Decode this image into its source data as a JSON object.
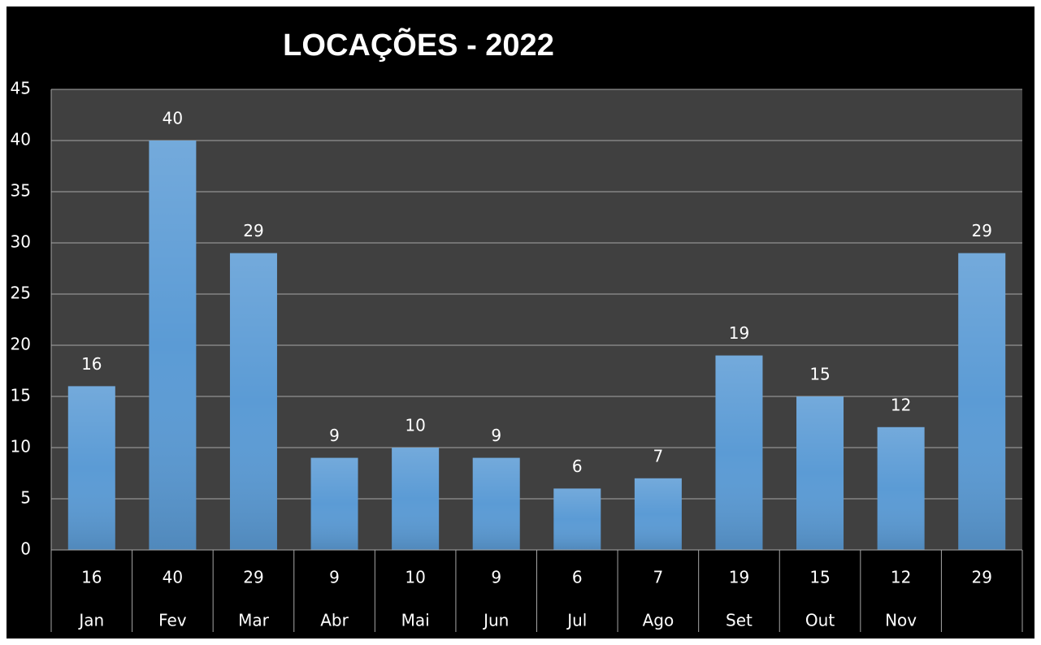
{
  "chart_data": {
    "type": "bar",
    "title": "LOCAÇÕES - 2022",
    "categories": [
      "Jan",
      "Fev",
      "Mar",
      "Abr",
      "Mai",
      "Jun",
      "Jul",
      "Ago",
      "Set",
      "Out",
      "Nov",
      null
    ],
    "values": [
      16,
      40,
      29,
      9,
      10,
      9,
      6,
      7,
      19,
      15,
      12,
      29
    ],
    "color": "#5b9bd5",
    "ylim": [
      0,
      45
    ],
    "yticks": [
      0,
      5,
      10,
      15,
      20,
      25,
      30,
      35,
      40,
      45
    ],
    "grid": true
  }
}
